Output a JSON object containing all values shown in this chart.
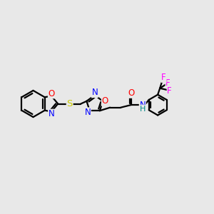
{
  "bg_color": "#e8e8e8",
  "bond_color": "#000000",
  "bond_width": 1.6,
  "atom_colors": {
    "O": "#ff0000",
    "N": "#0000ff",
    "S": "#cccc00",
    "F": "#ff00ff",
    "H": "#008888",
    "C": "#000000"
  },
  "font_size": 8.5,
  "title": ""
}
